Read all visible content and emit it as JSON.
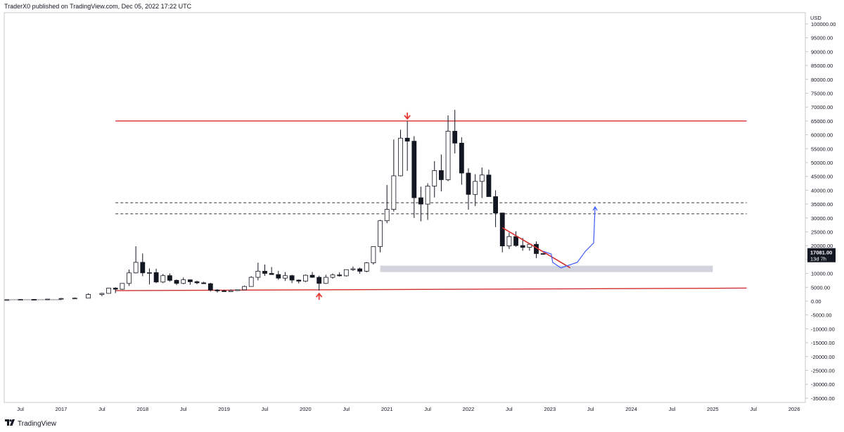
{
  "header": {
    "publisher_line": "TraderX0 published on TradingView.com, Dec 05, 2022 17:22 UTC"
  },
  "footer": {
    "brand": "TradingView",
    "logo_icon": "tradingview-logo-icon"
  },
  "price_axis": {
    "currency": "USD",
    "ticks": [
      "100000.00",
      "95000.00",
      "90000.00",
      "85000.00",
      "80000.00",
      "75000.00",
      "70000.00",
      "65000.00",
      "60000.00",
      "55000.00",
      "50000.00",
      "45000.00",
      "40000.00",
      "35000.00",
      "30000.00",
      "25000.00",
      "20000.00",
      "15000.00",
      "10000.00",
      "5000.00",
      "0.00",
      "-5000.00",
      "-10000.00",
      "-15000.00",
      "-20000.00",
      "-25000.00",
      "-30000.00",
      "-35000.00"
    ],
    "current_price": "17081.00",
    "countdown": "13d 7h"
  },
  "time_axis": {
    "ticks": [
      "Jul",
      "2017",
      "Jul",
      "2018",
      "Jul",
      "2019",
      "Jul",
      "2020",
      "Jul",
      "2021",
      "Jul",
      "2022",
      "Jul",
      "2023",
      "Jul",
      "2024",
      "Jul",
      "2025",
      "Jul",
      "2026"
    ]
  },
  "chart_data": {
    "type": "candlestick",
    "symbol_currency": "USD",
    "x_range": [
      "2016-05",
      "2026-06"
    ],
    "ylim": [
      -36000,
      102000
    ],
    "last_price": 17081,
    "levels": [
      {
        "kind": "resistance",
        "style": "solid",
        "color": "#d32f2f",
        "value": 65000,
        "from": "2017-09",
        "to": "2025-06"
      },
      {
        "kind": "resistance",
        "style": "dashed",
        "color": "#333333",
        "value": 35500,
        "from": "2017-09",
        "to": "2025-06"
      },
      {
        "kind": "resistance",
        "style": "dashed",
        "color": "#333333",
        "value": 31500,
        "from": "2017-09",
        "to": "2025-06"
      },
      {
        "kind": "support-trend",
        "style": "solid",
        "color": "#d32f2f",
        "from_value": 3800,
        "to_value": 4700,
        "from": "2017-09",
        "to": "2025-06"
      }
    ],
    "zones": [
      {
        "color": "#d1d4dc",
        "from": "2020-12",
        "to": "2025-01",
        "low": 10500,
        "high": 12800
      }
    ],
    "trendlines": [
      {
        "color": "#d32f2f",
        "from": "2022-06",
        "from_value": 26500,
        "to": "2023-04",
        "to_value": 12000
      }
    ],
    "markers": [
      {
        "icon": "arrow-down-icon",
        "color": "#e53935",
        "date": "2021-04",
        "value": 66000
      },
      {
        "icon": "arrow-up-icon",
        "color": "#e53935",
        "date": "2020-03",
        "value": 2500
      }
    ],
    "projection": {
      "color": "#3d5afe",
      "points": [
        [
          "2022-12",
          18000
        ],
        [
          "2023-01",
          17000
        ],
        [
          "2023-01",
          14000
        ],
        [
          "2023-02",
          12000
        ],
        [
          "2023-03",
          13000
        ],
        [
          "2023-04",
          14000
        ],
        [
          "2023-05",
          18000
        ],
        [
          "2023-06",
          21000
        ],
        [
          "2023-06",
          34000
        ]
      ]
    },
    "ohlc": [
      [
        "2016-05",
        450,
        540,
        430,
        530
      ],
      [
        "2016-07",
        530,
        680,
        450,
        620
      ],
      [
        "2016-09",
        620,
        640,
        580,
        610
      ],
      [
        "2016-11",
        610,
        760,
        600,
        740
      ],
      [
        "2017-01",
        740,
        1150,
        750,
        970
      ],
      [
        "2017-03",
        970,
        1300,
        890,
        1080
      ],
      [
        "2017-05",
        1080,
        2800,
        1050,
        2400
      ],
      [
        "2017-07",
        2400,
        3000,
        1800,
        2800
      ],
      [
        "2017-08",
        2800,
        4800,
        2700,
        4700
      ],
      [
        "2017-09",
        4700,
        5000,
        2900,
        4300
      ],
      [
        "2017-10",
        4300,
        6400,
        4100,
        6400
      ],
      [
        "2017-11",
        6400,
        11400,
        5500,
        10200
      ],
      [
        "2017-12",
        10200,
        19800,
        10000,
        14000
      ],
      [
        "2018-01",
        14000,
        17200,
        9000,
        10200
      ],
      [
        "2018-02",
        10200,
        11800,
        6000,
        10300
      ],
      [
        "2018-03",
        10300,
        11700,
        6500,
        6900
      ],
      [
        "2018-04",
        6900,
        9800,
        6500,
        9200
      ],
      [
        "2018-05",
        9200,
        10000,
        7000,
        7500
      ],
      [
        "2018-06",
        7500,
        7800,
        5800,
        6400
      ],
      [
        "2018-07",
        6400,
        8500,
        6100,
        7700
      ],
      [
        "2018-08",
        7700,
        7800,
        5900,
        7000
      ],
      [
        "2018-09",
        7000,
        7400,
        6100,
        6600
      ],
      [
        "2018-10",
        6600,
        7000,
        6200,
        6300
      ],
      [
        "2018-11",
        6300,
        6600,
        3500,
        4000
      ],
      [
        "2018-12",
        4000,
        4300,
        3100,
        3700
      ],
      [
        "2019-01",
        3700,
        4100,
        3400,
        3450
      ],
      [
        "2019-02",
        3450,
        4200,
        3400,
        3800
      ],
      [
        "2019-03",
        3800,
        4100,
        3700,
        4100
      ],
      [
        "2019-04",
        4100,
        5600,
        4100,
        5300
      ],
      [
        "2019-05",
        5300,
        9000,
        5300,
        8600
      ],
      [
        "2019-06",
        8600,
        13900,
        7500,
        10800
      ],
      [
        "2019-07",
        10800,
        13200,
        9100,
        10000
      ],
      [
        "2019-08",
        10000,
        12300,
        9500,
        9600
      ],
      [
        "2019-09",
        9600,
        10900,
        7700,
        8300
      ],
      [
        "2019-10",
        8300,
        10500,
        7300,
        9200
      ],
      [
        "2019-11",
        9200,
        9500,
        6500,
        7600
      ],
      [
        "2019-12",
        7600,
        7800,
        6400,
        7200
      ],
      [
        "2020-01",
        7200,
        9600,
        6900,
        9350
      ],
      [
        "2020-02",
        9350,
        10500,
        8400,
        8600
      ],
      [
        "2020-03",
        8600,
        9200,
        3800,
        6400
      ],
      [
        "2020-04",
        6400,
        9500,
        6200,
        8600
      ],
      [
        "2020-05",
        8600,
        10000,
        8100,
        9450
      ],
      [
        "2020-06",
        9450,
        10400,
        8900,
        9140
      ],
      [
        "2020-07",
        9140,
        11400,
        8900,
        11350
      ],
      [
        "2020-08",
        11350,
        12500,
        10900,
        11650
      ],
      [
        "2020-09",
        11650,
        12100,
        9900,
        10780
      ],
      [
        "2020-10",
        10780,
        14100,
        10400,
        13800
      ],
      [
        "2020-11",
        13800,
        19800,
        13200,
        19700
      ],
      [
        "2020-12",
        19700,
        29300,
        17600,
        29000
      ],
      [
        "2021-01",
        29000,
        41900,
        28100,
        33100
      ],
      [
        "2021-02",
        33100,
        58300,
        32300,
        45200
      ],
      [
        "2021-03",
        45200,
        61800,
        45000,
        58800
      ],
      [
        "2021-04",
        58800,
        64900,
        47000,
        57700
      ],
      [
        "2021-05",
        57700,
        59500,
        30000,
        37300
      ],
      [
        "2021-06",
        37300,
        41300,
        28800,
        35000
      ],
      [
        "2021-07",
        35000,
        42500,
        29300,
        41500
      ],
      [
        "2021-08",
        41500,
        50500,
        37400,
        47100
      ],
      [
        "2021-09",
        47100,
        52900,
        39600,
        43800
      ],
      [
        "2021-10",
        43800,
        67000,
        43300,
        61300
      ],
      [
        "2021-11",
        61300,
        69000,
        53300,
        57000
      ],
      [
        "2021-12",
        57000,
        59100,
        42000,
        46200
      ],
      [
        "2022-01",
        46200,
        47900,
        33000,
        38500
      ],
      [
        "2022-02",
        38500,
        45800,
        34300,
        43200
      ],
      [
        "2022-03",
        43200,
        48200,
        37200,
        45500
      ],
      [
        "2022-04",
        45500,
        47400,
        37700,
        37700
      ],
      [
        "2022-05",
        37700,
        40000,
        26700,
        31800
      ],
      [
        "2022-06",
        31800,
        31900,
        17600,
        19900
      ],
      [
        "2022-07",
        19900,
        24700,
        18800,
        23300
      ],
      [
        "2022-08",
        23300,
        25200,
        19600,
        20050
      ],
      [
        "2022-09",
        20050,
        22800,
        18200,
        19400
      ],
      [
        "2022-10",
        19400,
        20900,
        18200,
        20500
      ],
      [
        "2022-11",
        20500,
        21500,
        15500,
        17150
      ],
      [
        "2022-12",
        17150,
        17400,
        16800,
        17081
      ]
    ]
  }
}
